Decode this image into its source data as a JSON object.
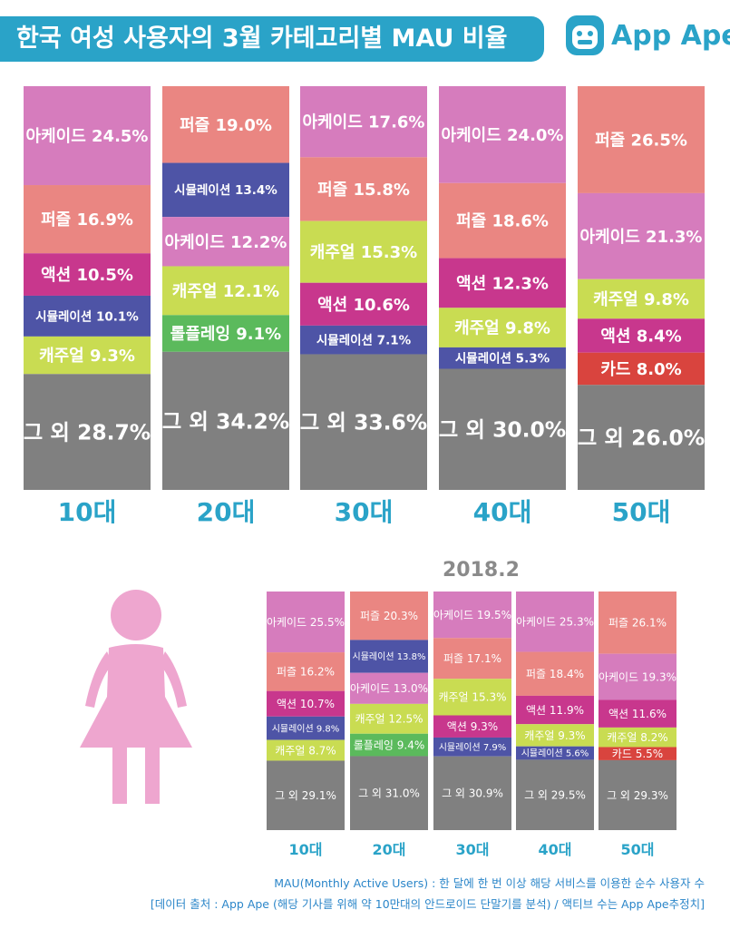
{
  "header": {
    "title": "한국 여성 사용자의 3월 카테고리별 MAU 비율",
    "logo_text": "App Ape"
  },
  "colors": {
    "아케이드": "#d67cbd",
    "퍼즐": "#ea8682",
    "시뮬레이션": "#4e54a6",
    "액션": "#c8378d",
    "캐주얼": "#c9dc52",
    "롤플레잉": "#5bba5c",
    "카드": "#d9443e",
    "그 외": "#808080",
    "axis_label": "#2aa3c8"
  },
  "chart_data": [
    {
      "type": "bar",
      "stacked": true,
      "x_labels": [
        "10대",
        "20대",
        "30대",
        "40대",
        "50대"
      ],
      "groups": [
        {
          "label": "10대",
          "segments": [
            {
              "name": "아케이드",
              "value": 24.5
            },
            {
              "name": "퍼즐",
              "value": 16.9
            },
            {
              "name": "액션",
              "value": 10.5
            },
            {
              "name": "시뮬레이션",
              "value": 10.1
            },
            {
              "name": "캐주얼",
              "value": 9.3
            },
            {
              "name": "그 외",
              "value": 28.7
            }
          ]
        },
        {
          "label": "20대",
          "segments": [
            {
              "name": "퍼즐",
              "value": 19.0
            },
            {
              "name": "시뮬레이션",
              "value": 13.4
            },
            {
              "name": "아케이드",
              "value": 12.2
            },
            {
              "name": "캐주얼",
              "value": 12.1
            },
            {
              "name": "롤플레잉",
              "value": 9.1
            },
            {
              "name": "그 외",
              "value": 34.2
            }
          ]
        },
        {
          "label": "30대",
          "segments": [
            {
              "name": "아케이드",
              "value": 17.6
            },
            {
              "name": "퍼즐",
              "value": 15.8
            },
            {
              "name": "캐주얼",
              "value": 15.3
            },
            {
              "name": "액션",
              "value": 10.6
            },
            {
              "name": "시뮬레이션",
              "value": 7.1
            },
            {
              "name": "그 외",
              "value": 33.6
            }
          ]
        },
        {
          "label": "40대",
          "segments": [
            {
              "name": "아케이드",
              "value": 24.0
            },
            {
              "name": "퍼즐",
              "value": 18.6
            },
            {
              "name": "액션",
              "value": 12.3
            },
            {
              "name": "캐주얼",
              "value": 9.8
            },
            {
              "name": "시뮬레이션",
              "value": 5.3
            },
            {
              "name": "그 외",
              "value": 30.0
            }
          ]
        },
        {
          "label": "50대",
          "segments": [
            {
              "name": "퍼즐",
              "value": 26.5
            },
            {
              "name": "아케이드",
              "value": 21.3
            },
            {
              "name": "캐주얼",
              "value": 9.8
            },
            {
              "name": "액션",
              "value": 8.4
            },
            {
              "name": "카드",
              "value": 8.0
            },
            {
              "name": "그 외",
              "value": 26.0
            }
          ]
        }
      ]
    },
    {
      "type": "bar",
      "stacked": true,
      "title": "2018.2",
      "x_labels": [
        "10대",
        "20대",
        "30대",
        "40대",
        "50대"
      ],
      "groups": [
        {
          "label": "10대",
          "segments": [
            {
              "name": "아케이드",
              "value": 25.5
            },
            {
              "name": "퍼즐",
              "value": 16.2
            },
            {
              "name": "액션",
              "value": 10.7
            },
            {
              "name": "시뮬레이션",
              "value": 9.8
            },
            {
              "name": "캐주얼",
              "value": 8.7
            },
            {
              "name": "그 외",
              "value": 29.1
            }
          ]
        },
        {
          "label": "20대",
          "segments": [
            {
              "name": "퍼즐",
              "value": 20.3
            },
            {
              "name": "시뮬레이션",
              "value": 13.8
            },
            {
              "name": "아케이드",
              "value": 13.0
            },
            {
              "name": "캐주얼",
              "value": 12.5
            },
            {
              "name": "롤플레잉",
              "value": 9.4
            },
            {
              "name": "그 외",
              "value": 31.0
            }
          ]
        },
        {
          "label": "30대",
          "segments": [
            {
              "name": "아케이드",
              "value": 19.5
            },
            {
              "name": "퍼즐",
              "value": 17.1
            },
            {
              "name": "캐주얼",
              "value": 15.3
            },
            {
              "name": "액션",
              "value": 9.3
            },
            {
              "name": "시뮬레이션",
              "value": 7.9
            },
            {
              "name": "그 외",
              "value": 30.9
            }
          ]
        },
        {
          "label": "40대",
          "segments": [
            {
              "name": "아케이드",
              "value": 25.3
            },
            {
              "name": "퍼즐",
              "value": 18.4
            },
            {
              "name": "액션",
              "value": 11.9
            },
            {
              "name": "캐주얼",
              "value": 9.3
            },
            {
              "name": "시뮬레이션",
              "value": 5.6
            },
            {
              "name": "그 외",
              "value": 29.5
            }
          ]
        },
        {
          "label": "50대",
          "segments": [
            {
              "name": "퍼즐",
              "value": 26.1
            },
            {
              "name": "아케이드",
              "value": 19.3
            },
            {
              "name": "액션",
              "value": 11.6
            },
            {
              "name": "캐주얼",
              "value": 8.2
            },
            {
              "name": "카드",
              "value": 5.5
            },
            {
              "name": "그 외",
              "value": 29.3
            }
          ]
        }
      ]
    }
  ],
  "footnotes": {
    "line1": "MAU(Monthly Active Users) : 한 달에 한 번 이상 해당 서비스를 이용한 순수 사용자 수",
    "line2": "[데이터 출처 : App Ape (해당 기사를 위해 약 10만대의 안드로이드 단말기를 분석) / 액티브 수는 App Ape추정치]"
  }
}
